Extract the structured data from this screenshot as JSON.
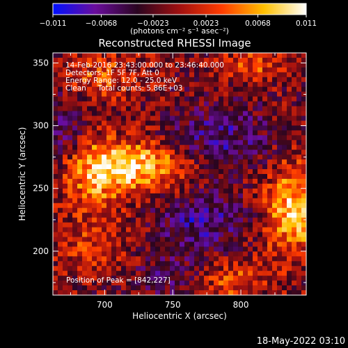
{
  "chart_data": {
    "type": "heatmap",
    "title": "Reconstructed RHESSI Image",
    "xlabel": "Heliocentric X (arcsec)",
    "ylabel": "Heliocentric Y (arcsec)",
    "xlim": [
      662,
      848
    ],
    "ylim": [
      165,
      358
    ],
    "x_ticks": [
      700,
      750,
      800
    ],
    "y_ticks": [
      200,
      250,
      300,
      350
    ],
    "grid": false,
    "colorbar": {
      "label": "(photons cm⁻² s⁻¹ asec⁻²)",
      "ticks": [
        -0.011,
        -0.0068,
        -0.0023,
        0.0023,
        0.0068,
        0.011
      ],
      "tick_labels": [
        "−0.011",
        "−0.0068",
        "−0.0023",
        "0.0023",
        "0.0068",
        "0.011"
      ],
      "range": [
        -0.011,
        0.011
      ],
      "colors": [
        "#0010ff",
        "#6a0d9c",
        "#2a0520",
        "#a01010",
        "#ff3c00",
        "#ffc000",
        "#ffffff"
      ]
    },
    "annotations": [
      "14-Feb-2016 23:43:00.000 to 23:46:40.000",
      "Detectors: 1F 5F 7F, Att 0",
      "Energy Range: 12.0 - 25.0 keV",
      "Clean     Total counts: 5.86E+03"
    ],
    "peak_label": "Position of Peak = [842,227]",
    "sources": [
      {
        "x": 730,
        "y": 268,
        "sx": 25,
        "sy": 13,
        "amp": 0.009
      },
      {
        "x": 695,
        "y": 262,
        "sx": 18,
        "sy": 20,
        "amp": 0.0075
      },
      {
        "x": 838,
        "y": 232,
        "sx": 14,
        "sy": 26,
        "amp": 0.0095
      },
      {
        "x": 842,
        "y": 227,
        "sx": 6,
        "sy": 6,
        "amp": 0.003
      },
      {
        "x": 695,
        "y": 340,
        "sx": 24,
        "sy": 14,
        "amp": 0.0045
      },
      {
        "x": 808,
        "y": 348,
        "sx": 18,
        "sy": 10,
        "amp": 0.0045
      },
      {
        "x": 795,
        "y": 175,
        "sx": 16,
        "sy": 14,
        "amp": 0.005
      },
      {
        "x": 690,
        "y": 205,
        "sx": 22,
        "sy": 16,
        "amp": 0.0035
      },
      {
        "x": 770,
        "y": 222,
        "sx": 22,
        "sy": 18,
        "amp": -0.0055
      },
      {
        "x": 785,
        "y": 290,
        "sx": 26,
        "sy": 18,
        "amp": -0.005
      },
      {
        "x": 668,
        "y": 300,
        "sx": 12,
        "sy": 22,
        "amp": -0.004
      },
      {
        "x": 745,
        "y": 180,
        "sx": 16,
        "sy": 12,
        "amp": -0.003
      }
    ]
  },
  "footer": {
    "timestamp": "18-May-2022 03:10"
  }
}
